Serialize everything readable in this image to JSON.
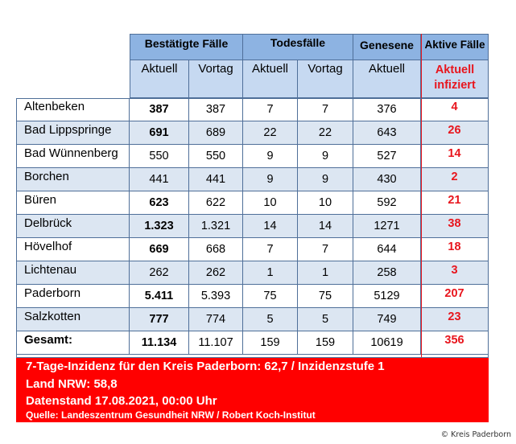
{
  "headers": {
    "bestaetigt": "Bestätigte Fälle",
    "todesfaelle": "Todesfälle",
    "genesene": "Genesene",
    "aktive": "Aktive Fälle",
    "aktuell": "Aktuell",
    "vortag": "Vortag",
    "aktuell_infiziert": "Aktuell infiziert"
  },
  "rows": [
    {
      "name": "Altenbeken",
      "best_aktuell": "387",
      "best_vortag": "387",
      "tod_aktuell": "7",
      "tod_vortag": "7",
      "genesene": "376",
      "aktiv": "4"
    },
    {
      "name": "Bad Lippspringe",
      "best_aktuell": "691",
      "best_vortag": "689",
      "tod_aktuell": "22",
      "tod_vortag": "22",
      "genesene": "643",
      "aktiv": "26"
    },
    {
      "name": "Bad Wünnenberg",
      "best_aktuell": "550",
      "best_vortag": "550",
      "tod_aktuell": "9",
      "tod_vortag": "9",
      "genesene": "527",
      "aktiv": "14"
    },
    {
      "name": "Borchen",
      "best_aktuell": "441",
      "best_vortag": "441",
      "tod_aktuell": "9",
      "tod_vortag": "9",
      "genesene": "430",
      "aktiv": "2"
    },
    {
      "name": "Büren",
      "best_aktuell": "623",
      "best_vortag": "622",
      "tod_aktuell": "10",
      "tod_vortag": "10",
      "genesene": "592",
      "aktiv": "21"
    },
    {
      "name": "Delbrück",
      "best_aktuell": "1.323",
      "best_vortag": "1.321",
      "tod_aktuell": "14",
      "tod_vortag": "14",
      "genesene": "1271",
      "aktiv": "38"
    },
    {
      "name": "Hövelhof",
      "best_aktuell": "669",
      "best_vortag": "668",
      "tod_aktuell": "7",
      "tod_vortag": "7",
      "genesene": "644",
      "aktiv": "18"
    },
    {
      "name": "Lichtenau",
      "best_aktuell": "262",
      "best_vortag": "262",
      "tod_aktuell": "1",
      "tod_vortag": "1",
      "genesene": "258",
      "aktiv": "3"
    },
    {
      "name": "Paderborn",
      "best_aktuell": "5.411",
      "best_vortag": "5.393",
      "tod_aktuell": "75",
      "tod_vortag": "75",
      "genesene": "5129",
      "aktiv": "207"
    },
    {
      "name": "Salzkotten",
      "best_aktuell": "777",
      "best_vortag": "774",
      "tod_aktuell": "5",
      "tod_vortag": "5",
      "genesene": "749",
      "aktiv": "23"
    },
    {
      "name": "Gesamt:",
      "best_aktuell": "11.134",
      "best_vortag": "11.107",
      "tod_aktuell": "159",
      "tod_vortag": "159",
      "genesene": "10619",
      "aktiv": "356"
    }
  ],
  "footer": {
    "line1": "7-Tage-Inzidenz für den Kreis Paderborn: 62,7 / Inzidenzstufe 1",
    "line2": "Land NRW: 58,8",
    "line3": "Datenstand 17.08.2021, 00:00 Uhr",
    "line4": "Quelle: Landeszentrum Gesundheit NRW / Robert Koch-Institut"
  },
  "copyright": "© Kreis Paderborn",
  "colors": {
    "header_blue": "#8db3e2",
    "subheader_blue": "#c6d9f1",
    "row_shade": "#dce6f2",
    "accent_red": "#e8151d",
    "footer_red": "#ff0000"
  }
}
